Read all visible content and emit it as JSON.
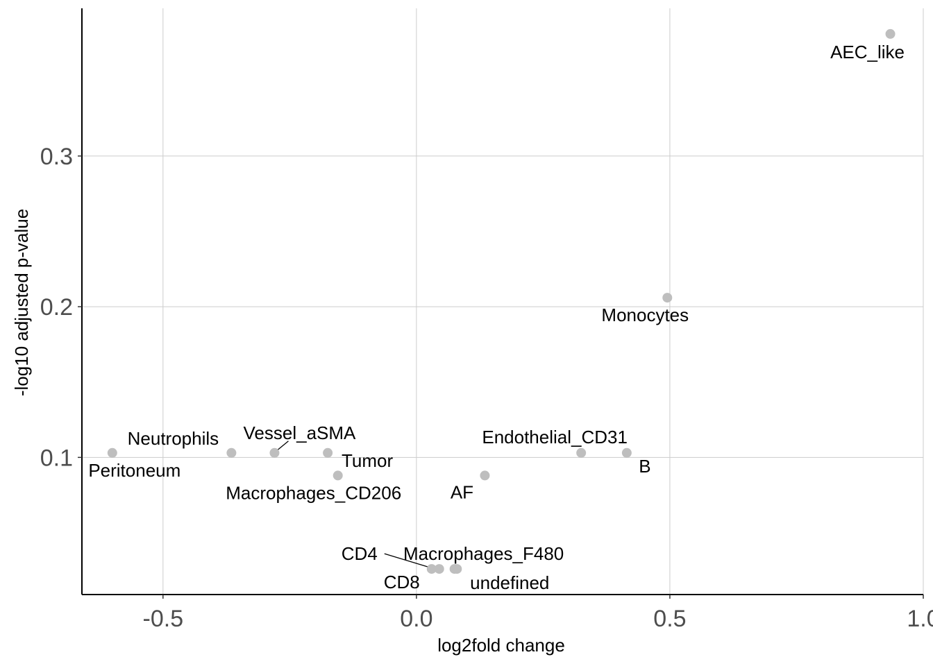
{
  "chart_data": {
    "type": "scatter",
    "xlabel": "log2fold change",
    "ylabel": "-log10 adjusted p-value",
    "xlim": [
      -0.66,
      1.0
    ],
    "ylim": [
      0.009,
      0.398
    ],
    "x_ticks": [
      -0.5,
      0.0,
      0.5,
      1.0
    ],
    "x_tick_labels": [
      "-0.5",
      "0.0",
      "0.5",
      "1.0"
    ],
    "y_ticks": [
      0.1,
      0.2,
      0.3
    ],
    "y_tick_labels": [
      "0.1",
      "0.2",
      "0.3"
    ],
    "grid": true,
    "point_color": "#bebebe",
    "points": [
      {
        "label": "AEC_like",
        "x": 0.935,
        "y": 0.381
      },
      {
        "label": "Monocytes",
        "x": 0.495,
        "y": 0.206
      },
      {
        "label": "Endothelial_CD31",
        "x": 0.325,
        "y": 0.103
      },
      {
        "label": "B",
        "x": 0.415,
        "y": 0.103
      },
      {
        "label": "AF",
        "x": 0.135,
        "y": 0.088
      },
      {
        "label": "Peritoneum",
        "x": -0.6,
        "y": 0.103
      },
      {
        "label": "Neutrophils",
        "x": -0.365,
        "y": 0.103
      },
      {
        "label": "Vessel_aSMA",
        "x": -0.28,
        "y": 0.103
      },
      {
        "label": "Tumor",
        "x": -0.175,
        "y": 0.103
      },
      {
        "label": "Macrophages_CD206",
        "x": -0.155,
        "y": 0.088
      },
      {
        "label": "CD4",
        "x": 0.03,
        "y": 0.026
      },
      {
        "label": "CD8",
        "x": 0.045,
        "y": 0.026
      },
      {
        "label": "Macrophages_F480",
        "x": 0.075,
        "y": 0.026
      },
      {
        "label": "undefined",
        "x": 0.08,
        "y": 0.026
      }
    ]
  }
}
